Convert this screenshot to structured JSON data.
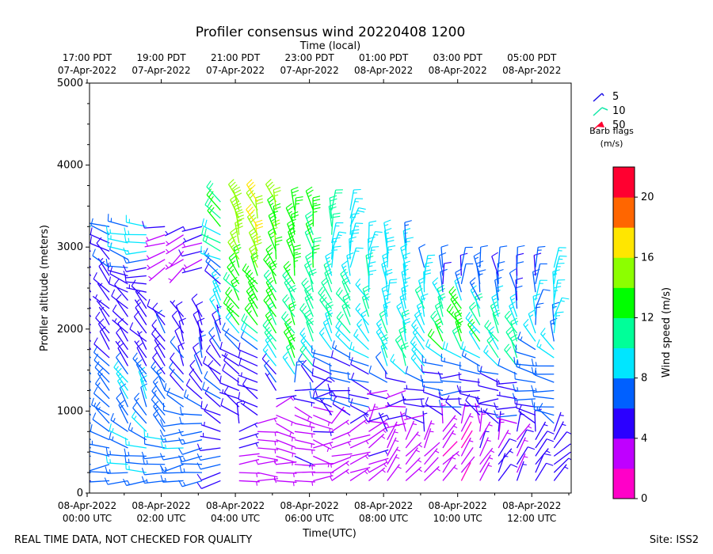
{
  "chart_data": {
    "type": "wind-barb",
    "title": "Profiler consensus wind 20220408 1200",
    "top_axis_label": "Time (local)",
    "xlabel": "Time(UTC)",
    "ylabel": "Profiler altitude (meters)",
    "xlim_hours_utc": [
      0,
      13
    ],
    "ylim": [
      0,
      5000
    ],
    "y_ticks": [
      "0",
      "1000",
      "2000",
      "3000",
      "4000",
      "5000"
    ],
    "x_ticks_utc": [
      {
        "hour": 0,
        "date": "08-Apr-2022",
        "time": "00:00 UTC"
      },
      {
        "hour": 2,
        "date": "08-Apr-2022",
        "time": "02:00 UTC"
      },
      {
        "hour": 4,
        "date": "08-Apr-2022",
        "time": "04:00 UTC"
      },
      {
        "hour": 6,
        "date": "08-Apr-2022",
        "time": "06:00 UTC"
      },
      {
        "hour": 8,
        "date": "08-Apr-2022",
        "time": "08:00 UTC"
      },
      {
        "hour": 10,
        "date": "08-Apr-2022",
        "time": "10:00 UTC"
      },
      {
        "hour": 12,
        "date": "08-Apr-2022",
        "time": "12:00 UTC"
      }
    ],
    "x_ticks_local": [
      {
        "hour": 0,
        "time": "17:00 PDT",
        "date": "07-Apr-2022"
      },
      {
        "hour": 2,
        "time": "19:00 PDT",
        "date": "07-Apr-2022"
      },
      {
        "hour": 4,
        "time": "21:00 PDT",
        "date": "07-Apr-2022"
      },
      {
        "hour": 6,
        "time": "23:00 PDT",
        "date": "07-Apr-2022"
      },
      {
        "hour": 8,
        "time": "01:00 PDT",
        "date": "08-Apr-2022"
      },
      {
        "hour": 10,
        "time": "03:00 PDT",
        "date": "08-Apr-2022"
      },
      {
        "hour": 12,
        "time": "05:00 PDT",
        "date": "08-Apr-2022"
      }
    ],
    "legend": {
      "title_line1": "Barb flags",
      "title_line2": "(m/s)",
      "entries": [
        {
          "label": "5",
          "color": "#1c10e6"
        },
        {
          "label": "10",
          "color": "#10e8a8"
        },
        {
          "label": "50",
          "color": "#ff0030"
        }
      ]
    },
    "colorbar": {
      "label": "Wind speed (m/s)",
      "min": 0,
      "max": 22,
      "ticks": [
        "0",
        "4",
        "8",
        "12",
        "16",
        "20"
      ],
      "tick_values": [
        0,
        4,
        8,
        12,
        16,
        20
      ],
      "colors": [
        "#ff00c8",
        "#bf00ff",
        "#2b00ff",
        "#0060ff",
        "#00e6ff",
        "#00ff99",
        "#00ff00",
        "#8cff00",
        "#ffe600",
        "#ff6600",
        "#ff0030"
      ]
    },
    "barb_samples": [
      {
        "t": 0.2,
        "alt": 200,
        "speed": 6,
        "dir": 260
      },
      {
        "t": 0.2,
        "alt": 800,
        "speed": 7,
        "dir": 300
      },
      {
        "t": 0.2,
        "alt": 1200,
        "speed": 7,
        "dir": 315
      },
      {
        "t": 0.2,
        "alt": 2000,
        "speed": 5,
        "dir": 320
      },
      {
        "t": 0.2,
        "alt": 2700,
        "speed": 5,
        "dir": 320
      },
      {
        "t": 0.2,
        "alt": 3100,
        "speed": 5,
        "dir": 290
      },
      {
        "t": 0.2,
        "alt": 3300,
        "speed": 8,
        "dir": 290
      },
      {
        "t": 1.5,
        "alt": 300,
        "speed": 8,
        "dir": 270
      },
      {
        "t": 1.5,
        "alt": 1000,
        "speed": 8,
        "dir": 330
      },
      {
        "t": 1.5,
        "alt": 2000,
        "speed": 5,
        "dir": 320
      },
      {
        "t": 1.5,
        "alt": 3100,
        "speed": 9,
        "dir": 280
      },
      {
        "t": 2.0,
        "alt": 2900,
        "speed": 3,
        "dir": 250
      },
      {
        "t": 2.5,
        "alt": 2850,
        "speed": 3,
        "dir": 230
      },
      {
        "t": 3.0,
        "alt": 300,
        "speed": 7,
        "dir": 260
      },
      {
        "t": 3.0,
        "alt": 2000,
        "speed": 5,
        "dir": 340
      },
      {
        "t": 4.5,
        "alt": 300,
        "speed": 3,
        "dir": 90
      },
      {
        "t": 4.5,
        "alt": 1400,
        "speed": 5,
        "dir": 300
      },
      {
        "t": 4.5,
        "alt": 2300,
        "speed": 13,
        "dir": 325
      },
      {
        "t": 4.5,
        "alt": 3200,
        "speed": 16,
        "dir": 340
      },
      {
        "t": 5.5,
        "alt": 800,
        "speed": 3,
        "dir": 110
      },
      {
        "t": 5.5,
        "alt": 1900,
        "speed": 12,
        "dir": 330
      },
      {
        "t": 5.5,
        "alt": 3100,
        "speed": 13,
        "dir": 350
      },
      {
        "t": 7.0,
        "alt": 500,
        "speed": 3,
        "dir": 70
      },
      {
        "t": 7.0,
        "alt": 1300,
        "speed": 6,
        "dir": 280
      },
      {
        "t": 7.0,
        "alt": 2200,
        "speed": 11,
        "dir": 330
      },
      {
        "t": 7.0,
        "alt": 3000,
        "speed": 9,
        "dir": 10
      },
      {
        "t": 8.5,
        "alt": 400,
        "speed": 3,
        "dir": 40
      },
      {
        "t": 8.5,
        "alt": 1100,
        "speed": 4,
        "dir": 260
      },
      {
        "t": 8.5,
        "alt": 1700,
        "speed": 10,
        "dir": 340
      },
      {
        "t": 8.5,
        "alt": 2600,
        "speed": 9,
        "dir": 0
      },
      {
        "t": 10.0,
        "alt": 500,
        "speed": 2,
        "dir": 40
      },
      {
        "t": 10.0,
        "alt": 1300,
        "speed": 6,
        "dir": 270
      },
      {
        "t": 10.0,
        "alt": 2000,
        "speed": 13,
        "dir": 330
      },
      {
        "t": 10.0,
        "alt": 2700,
        "speed": 6,
        "dir": 0
      },
      {
        "t": 11.5,
        "alt": 400,
        "speed": 4,
        "dir": 30
      },
      {
        "t": 11.5,
        "alt": 1200,
        "speed": 5,
        "dir": 270
      },
      {
        "t": 11.5,
        "alt": 1800,
        "speed": 11,
        "dir": 330
      },
      {
        "t": 11.5,
        "alt": 2600,
        "speed": 6,
        "dir": 350
      },
      {
        "t": 12.5,
        "alt": 300,
        "speed": 5,
        "dir": 40
      },
      {
        "t": 12.5,
        "alt": 1300,
        "speed": 7,
        "dir": 280
      },
      {
        "t": 12.5,
        "alt": 2300,
        "speed": 8,
        "dir": 10
      }
    ]
  },
  "footer": {
    "left": "REAL TIME DATA, NOT CHECKED FOR QUALITY",
    "right": "Site: ISS2"
  }
}
